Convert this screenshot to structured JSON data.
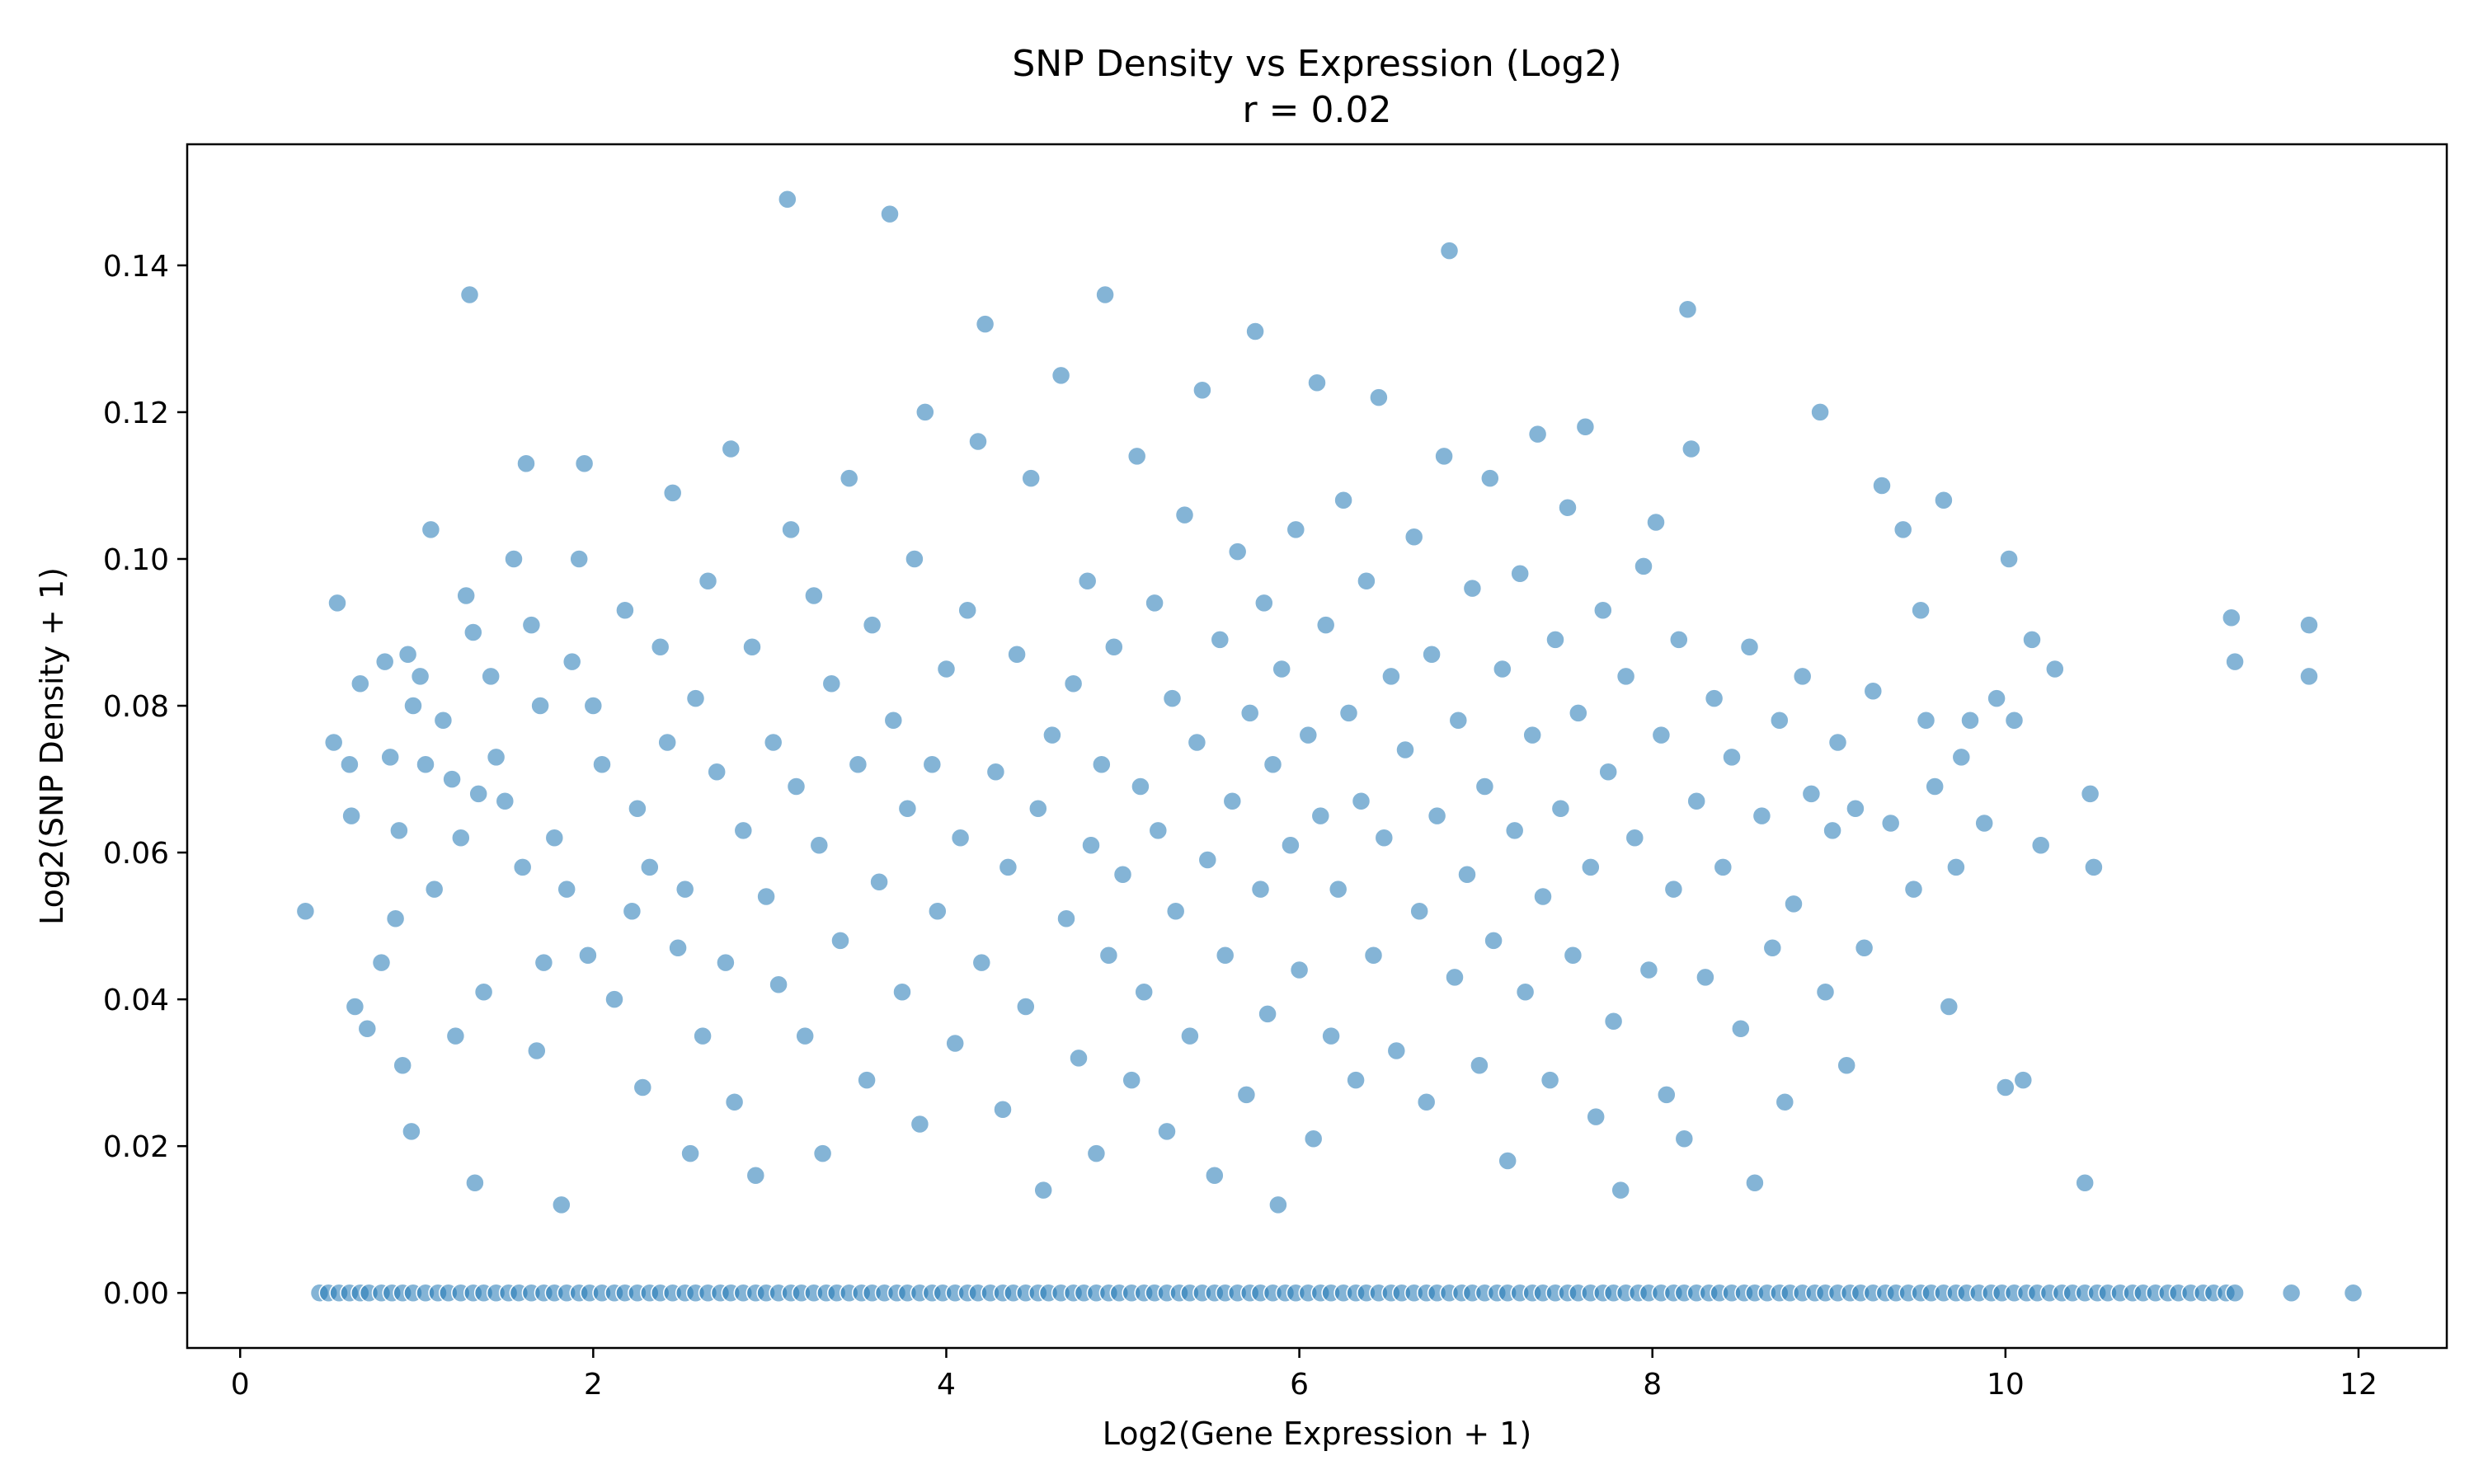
{
  "chart_data": {
    "type": "scatter",
    "title": "SNP Density vs Expression (Log2)",
    "subtitle": "r = 0.02",
    "xlabel": "Log2(Gene Expression + 1)",
    "ylabel": "Log2(SNP Density + 1)",
    "xlim": [
      -0.3,
      12.5
    ],
    "ylim": [
      -0.0075,
      0.1565
    ],
    "xticks": [
      0,
      2,
      4,
      6,
      8,
      10,
      12
    ],
    "xtick_labels": [
      "0",
      "2",
      "4",
      "6",
      "8",
      "10",
      "12"
    ],
    "yticks": [
      0.0,
      0.02,
      0.04,
      0.06,
      0.08,
      0.1,
      0.12,
      0.14
    ],
    "ytick_labels": [
      "0.00",
      "0.02",
      "0.04",
      "0.06",
      "0.08",
      "0.10",
      "0.12",
      "0.14"
    ],
    "grid": false,
    "legend": "none",
    "colors": {
      "point": "#1f77b4"
    },
    "series": [
      {
        "values": [
          [
            0.37,
            0.052
          ],
          [
            0.53,
            0.075
          ],
          [
            0.55,
            0.094
          ],
          [
            0.62,
            0.072
          ],
          [
            0.63,
            0.065
          ],
          [
            0.65,
            0.039
          ],
          [
            0.68,
            0.083
          ],
          [
            0.72,
            0.036
          ],
          [
            0.8,
            0.045
          ],
          [
            0.82,
            0.086
          ],
          [
            0.85,
            0.073
          ],
          [
            0.88,
            0.051
          ],
          [
            0.9,
            0.063
          ],
          [
            0.92,
            0.031
          ],
          [
            0.95,
            0.087
          ],
          [
            0.97,
            0.022
          ],
          [
            0.98,
            0.08
          ],
          [
            1.02,
            0.084
          ],
          [
            1.05,
            0.072
          ],
          [
            1.08,
            0.104
          ],
          [
            1.1,
            0.055
          ],
          [
            1.15,
            0.078
          ],
          [
            1.2,
            0.07
          ],
          [
            1.22,
            0.035
          ],
          [
            1.25,
            0.062
          ],
          [
            1.28,
            0.095
          ],
          [
            1.3,
            0.136
          ],
          [
            1.32,
            0.09
          ],
          [
            1.33,
            0.015
          ],
          [
            1.35,
            0.068
          ],
          [
            1.38,
            0.041
          ],
          [
            1.42,
            0.084
          ],
          [
            1.45,
            0.073
          ],
          [
            1.5,
            0.067
          ],
          [
            1.55,
            0.1
          ],
          [
            1.6,
            0.058
          ],
          [
            1.62,
            0.113
          ],
          [
            1.65,
            0.091
          ],
          [
            1.68,
            0.033
          ],
          [
            1.7,
            0.08
          ],
          [
            1.72,
            0.045
          ],
          [
            1.78,
            0.062
          ],
          [
            1.82,
            0.012
          ],
          [
            1.85,
            0.055
          ],
          [
            1.88,
            0.086
          ],
          [
            1.92,
            0.1
          ],
          [
            1.95,
            0.113
          ],
          [
            1.97,
            0.046
          ],
          [
            2.0,
            0.08
          ],
          [
            2.05,
            0.072
          ],
          [
            2.12,
            0.04
          ],
          [
            2.18,
            0.093
          ],
          [
            2.22,
            0.052
          ],
          [
            2.25,
            0.066
          ],
          [
            2.28,
            0.028
          ],
          [
            2.32,
            0.058
          ],
          [
            2.38,
            0.088
          ],
          [
            2.42,
            0.075
          ],
          [
            2.45,
            0.109
          ],
          [
            2.48,
            0.047
          ],
          [
            2.52,
            0.055
          ],
          [
            2.55,
            0.019
          ],
          [
            2.58,
            0.081
          ],
          [
            2.62,
            0.035
          ],
          [
            2.65,
            0.097
          ],
          [
            2.7,
            0.071
          ],
          [
            2.75,
            0.045
          ],
          [
            2.78,
            0.115
          ],
          [
            2.8,
            0.026
          ],
          [
            2.85,
            0.063
          ],
          [
            2.9,
            0.088
          ],
          [
            2.92,
            0.016
          ],
          [
            2.98,
            0.054
          ],
          [
            3.02,
            0.075
          ],
          [
            3.05,
            0.042
          ],
          [
            3.1,
            0.149
          ],
          [
            3.12,
            0.104
          ],
          [
            3.15,
            0.069
          ],
          [
            3.2,
            0.035
          ],
          [
            3.25,
            0.095
          ],
          [
            3.28,
            0.061
          ],
          [
            3.3,
            0.019
          ],
          [
            3.35,
            0.083
          ],
          [
            3.4,
            0.048
          ],
          [
            3.45,
            0.111
          ],
          [
            3.5,
            0.072
          ],
          [
            3.55,
            0.029
          ],
          [
            3.58,
            0.091
          ],
          [
            3.62,
            0.056
          ],
          [
            3.68,
            0.147
          ],
          [
            3.7,
            0.078
          ],
          [
            3.75,
            0.041
          ],
          [
            3.78,
            0.066
          ],
          [
            3.82,
            0.1
          ],
          [
            3.85,
            0.023
          ],
          [
            3.88,
            0.12
          ],
          [
            3.92,
            0.072
          ],
          [
            3.95,
            0.052
          ],
          [
            4.0,
            0.085
          ],
          [
            4.05,
            0.034
          ],
          [
            4.08,
            0.062
          ],
          [
            4.12,
            0.093
          ],
          [
            4.18,
            0.116
          ],
          [
            4.2,
            0.045
          ],
          [
            4.22,
            0.132
          ],
          [
            4.28,
            0.071
          ],
          [
            4.32,
            0.025
          ],
          [
            4.35,
            0.058
          ],
          [
            4.4,
            0.087
          ],
          [
            4.45,
            0.039
          ],
          [
            4.48,
            0.111
          ],
          [
            4.52,
            0.066
          ],
          [
            4.55,
            0.014
          ],
          [
            4.6,
            0.076
          ],
          [
            4.65,
            0.125
          ],
          [
            4.68,
            0.051
          ],
          [
            4.72,
            0.083
          ],
          [
            4.75,
            0.032
          ],
          [
            4.8,
            0.097
          ],
          [
            4.82,
            0.061
          ],
          [
            4.85,
            0.019
          ],
          [
            4.88,
            0.072
          ],
          [
            4.9,
            0.136
          ],
          [
            4.92,
            0.046
          ],
          [
            4.95,
            0.088
          ],
          [
            5.0,
            0.057
          ],
          [
            5.05,
            0.029
          ],
          [
            5.08,
            0.114
          ],
          [
            5.1,
            0.069
          ],
          [
            5.12,
            0.041
          ],
          [
            5.18,
            0.094
          ],
          [
            5.2,
            0.063
          ],
          [
            5.25,
            0.022
          ],
          [
            5.28,
            0.081
          ],
          [
            5.3,
            0.052
          ],
          [
            5.35,
            0.106
          ],
          [
            5.38,
            0.035
          ],
          [
            5.42,
            0.075
          ],
          [
            5.45,
            0.123
          ],
          [
            5.48,
            0.059
          ],
          [
            5.52,
            0.016
          ],
          [
            5.55,
            0.089
          ],
          [
            5.58,
            0.046
          ],
          [
            5.62,
            0.067
          ],
          [
            5.65,
            0.101
          ],
          [
            5.7,
            0.027
          ],
          [
            5.72,
            0.079
          ],
          [
            5.75,
            0.131
          ],
          [
            5.78,
            0.055
          ],
          [
            5.8,
            0.094
          ],
          [
            5.82,
            0.038
          ],
          [
            5.85,
            0.072
          ],
          [
            5.88,
            0.012
          ],
          [
            5.9,
            0.085
          ],
          [
            5.95,
            0.061
          ],
          [
            5.98,
            0.104
          ],
          [
            6.0,
            0.044
          ],
          [
            6.05,
            0.076
          ],
          [
            6.08,
            0.021
          ],
          [
            6.1,
            0.124
          ],
          [
            6.12,
            0.065
          ],
          [
            6.15,
            0.091
          ],
          [
            6.18,
            0.035
          ],
          [
            6.22,
            0.055
          ],
          [
            6.25,
            0.108
          ],
          [
            6.28,
            0.079
          ],
          [
            6.32,
            0.029
          ],
          [
            6.35,
            0.067
          ],
          [
            6.38,
            0.097
          ],
          [
            6.42,
            0.046
          ],
          [
            6.45,
            0.122
          ],
          [
            6.48,
            0.062
          ],
          [
            6.52,
            0.084
          ],
          [
            6.55,
            0.033
          ],
          [
            6.6,
            0.074
          ],
          [
            6.65,
            0.103
          ],
          [
            6.68,
            0.052
          ],
          [
            6.72,
            0.026
          ],
          [
            6.75,
            0.087
          ],
          [
            6.78,
            0.065
          ],
          [
            6.82,
            0.114
          ],
          [
            6.85,
            0.142
          ],
          [
            6.88,
            0.043
          ],
          [
            6.9,
            0.078
          ],
          [
            6.95,
            0.057
          ],
          [
            6.98,
            0.096
          ],
          [
            7.02,
            0.031
          ],
          [
            7.05,
            0.069
          ],
          [
            7.08,
            0.111
          ],
          [
            7.1,
            0.048
          ],
          [
            7.15,
            0.085
          ],
          [
            7.18,
            0.018
          ],
          [
            7.22,
            0.063
          ],
          [
            7.25,
            0.098
          ],
          [
            7.28,
            0.041
          ],
          [
            7.32,
            0.076
          ],
          [
            7.35,
            0.117
          ],
          [
            7.38,
            0.054
          ],
          [
            7.42,
            0.029
          ],
          [
            7.45,
            0.089
          ],
          [
            7.48,
            0.066
          ],
          [
            7.52,
            0.107
          ],
          [
            7.55,
            0.046
          ],
          [
            7.58,
            0.079
          ],
          [
            7.62,
            0.118
          ],
          [
            7.65,
            0.058
          ],
          [
            7.68,
            0.024
          ],
          [
            7.72,
            0.093
          ],
          [
            7.75,
            0.071
          ],
          [
            7.78,
            0.037
          ],
          [
            7.82,
            0.014
          ],
          [
            7.85,
            0.084
          ],
          [
            7.9,
            0.062
          ],
          [
            7.95,
            0.099
          ],
          [
            7.98,
            0.044
          ],
          [
            8.02,
            0.105
          ],
          [
            8.05,
            0.076
          ],
          [
            8.08,
            0.027
          ],
          [
            8.12,
            0.055
          ],
          [
            8.15,
            0.089
          ],
          [
            8.18,
            0.021
          ],
          [
            8.2,
            0.134
          ],
          [
            8.22,
            0.115
          ],
          [
            8.25,
            0.067
          ],
          [
            8.3,
            0.043
          ],
          [
            8.35,
            0.081
          ],
          [
            8.4,
            0.058
          ],
          [
            8.45,
            0.073
          ],
          [
            8.5,
            0.036
          ],
          [
            8.55,
            0.088
          ],
          [
            8.58,
            0.015
          ],
          [
            8.62,
            0.065
          ],
          [
            8.68,
            0.047
          ],
          [
            8.72,
            0.078
          ],
          [
            8.75,
            0.026
          ],
          [
            8.8,
            0.053
          ],
          [
            8.85,
            0.084
          ],
          [
            8.9,
            0.068
          ],
          [
            8.95,
            0.12
          ],
          [
            8.98,
            0.041
          ],
          [
            9.02,
            0.063
          ],
          [
            9.05,
            0.075
          ],
          [
            9.1,
            0.031
          ],
          [
            9.15,
            0.066
          ],
          [
            9.2,
            0.047
          ],
          [
            9.25,
            0.082
          ],
          [
            9.3,
            0.11
          ],
          [
            9.35,
            0.064
          ],
          [
            9.42,
            0.104
          ],
          [
            9.48,
            0.055
          ],
          [
            9.52,
            0.093
          ],
          [
            9.55,
            0.078
          ],
          [
            9.6,
            0.069
          ],
          [
            9.65,
            0.108
          ],
          [
            9.68,
            0.039
          ],
          [
            9.72,
            0.058
          ],
          [
            9.75,
            0.073
          ],
          [
            9.8,
            0.078
          ],
          [
            9.88,
            0.064
          ],
          [
            9.95,
            0.081
          ],
          [
            10.0,
            0.028
          ],
          [
            10.02,
            0.1
          ],
          [
            10.05,
            0.078
          ],
          [
            10.1,
            0.029
          ],
          [
            10.15,
            0.089
          ],
          [
            10.2,
            0.061
          ],
          [
            10.28,
            0.085
          ],
          [
            10.45,
            0.015
          ],
          [
            10.48,
            0.068
          ],
          [
            10.5,
            0.058
          ],
          [
            11.28,
            0.092
          ],
          [
            11.3,
            0.086
          ],
          [
            11.72,
            0.091
          ],
          [
            11.72,
            0.084
          ]
        ]
      }
    ],
    "zero_row_x": [
      0.45,
      0.5,
      0.56,
      0.62,
      0.68,
      0.73,
      0.8,
      0.86,
      0.92,
      0.98,
      1.05,
      1.12,
      1.18,
      1.25,
      1.32,
      1.38,
      1.45,
      1.52,
      1.58,
      1.65,
      1.72,
      1.78,
      1.85,
      1.92,
      1.98,
      2.05,
      2.12,
      2.18,
      2.25,
      2.32,
      2.38,
      2.45,
      2.52,
      2.58,
      2.65,
      2.72,
      2.78,
      2.85,
      2.92,
      2.98,
      3.05,
      3.12,
      3.18,
      3.25,
      3.32,
      3.38,
      3.45,
      3.52,
      3.58,
      3.65,
      3.72,
      3.78,
      3.85,
      3.92,
      3.98,
      4.05,
      4.12,
      4.18,
      4.25,
      4.32,
      4.38,
      4.45,
      4.52,
      4.58,
      4.65,
      4.72,
      4.78,
      4.85,
      4.92,
      4.98,
      5.05,
      5.12,
      5.18,
      5.25,
      5.32,
      5.38,
      5.45,
      5.52,
      5.58,
      5.65,
      5.72,
      5.78,
      5.85,
      5.92,
      5.98,
      6.05,
      6.12,
      6.18,
      6.25,
      6.32,
      6.38,
      6.45,
      6.52,
      6.58,
      6.65,
      6.72,
      6.78,
      6.85,
      6.92,
      6.98,
      7.05,
      7.12,
      7.18,
      7.25,
      7.32,
      7.38,
      7.45,
      7.52,
      7.58,
      7.65,
      7.72,
      7.78,
      7.85,
      7.92,
      7.98,
      8.05,
      8.12,
      8.18,
      8.25,
      8.32,
      8.38,
      8.45,
      8.52,
      8.58,
      8.65,
      8.72,
      8.78,
      8.85,
      8.92,
      8.98,
      9.05,
      9.12,
      9.18,
      9.25,
      9.32,
      9.38,
      9.45,
      9.52,
      9.58,
      9.65,
      9.72,
      9.78,
      9.85,
      9.92,
      9.98,
      10.05,
      10.12,
      10.18,
      10.25,
      10.32,
      10.38,
      10.45,
      10.52,
      10.58,
      10.65,
      10.72,
      10.78,
      10.85,
      10.92,
      10.98,
      11.05,
      11.12,
      11.18,
      11.25,
      11.3,
      11.62,
      11.97
    ]
  }
}
